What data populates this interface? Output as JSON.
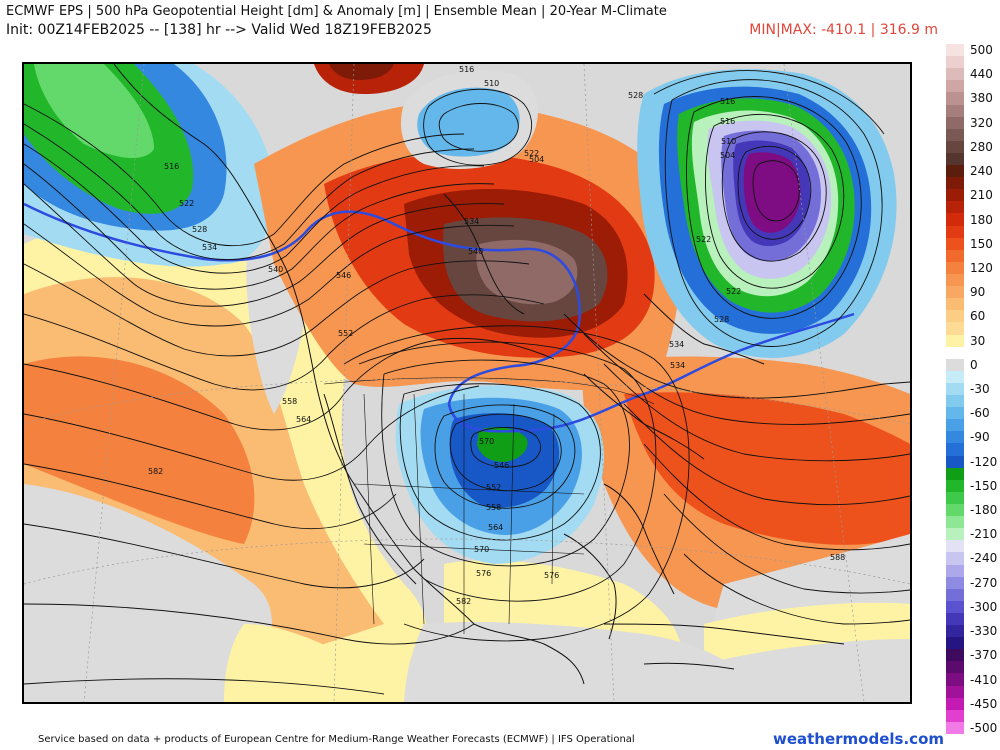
{
  "header": {
    "line1": "ECMWF EPS | 500 hPa Geopotential Height [dm] & Anomaly [m] | Ensemble Mean | 20-Year M-Climate",
    "line2": "Init: 00Z14FEB2025 -- [138] hr --> Valid Wed 18Z19FEB2025",
    "minmax": "MIN|MAX: -410.1 | 316.9 m"
  },
  "footer": {
    "attribution": "Service based on data + products of European Centre for Medium-Range Weather Forecasts (ECMWF) | IFS Operational",
    "brand": "weathermodels.com"
  },
  "legend": {
    "levels": [
      {
        "label": "500",
        "color": "#f7e2e2"
      },
      {
        "label": "",
        "color": "#eccfcf"
      },
      {
        "label": "440",
        "color": "#ddbbba"
      },
      {
        "label": "",
        "color": "#cfa6a4"
      },
      {
        "label": "380",
        "color": "#bb9290"
      },
      {
        "label": "",
        "color": "#a67e7b"
      },
      {
        "label": "320",
        "color": "#8f6a66"
      },
      {
        "label": "",
        "color": "#7a5853"
      },
      {
        "label": "280",
        "color": "#674640"
      },
      {
        "label": "",
        "color": "#54362f"
      },
      {
        "label": "240",
        "color": "#5d1d0c"
      },
      {
        "label": "",
        "color": "#7d1b08"
      },
      {
        "label": "210",
        "color": "#9c1c06"
      },
      {
        "label": "",
        "color": "#b82208"
      },
      {
        "label": "180",
        "color": "#d22a0a"
      },
      {
        "label": "",
        "color": "#e23a12"
      },
      {
        "label": "150",
        "color": "#ee521c"
      },
      {
        "label": "",
        "color": "#f16a2c"
      },
      {
        "label": "120",
        "color": "#f4823e"
      },
      {
        "label": "",
        "color": "#f69650"
      },
      {
        "label": "90",
        "color": "#f8a862"
      },
      {
        "label": "",
        "color": "#fabb72"
      },
      {
        "label": "60",
        "color": "#fccd84"
      },
      {
        "label": "",
        "color": "#fddb94"
      },
      {
        "label": "30",
        "color": "#fef3a4"
      },
      {
        "label": "",
        "color": "#ffffff"
      },
      {
        "label": "0",
        "color": "#dcdcdc"
      },
      {
        "label": "",
        "color": "#c5ecf7"
      },
      {
        "label": "-30",
        "color": "#a3dcf2"
      },
      {
        "label": "",
        "color": "#83cbee"
      },
      {
        "label": "-60",
        "color": "#64b7ea"
      },
      {
        "label": "",
        "color": "#4aa0e6"
      },
      {
        "label": "-90",
        "color": "#3488e0"
      },
      {
        "label": "",
        "color": "#2470d8"
      },
      {
        "label": "-120",
        "color": "#1858c6"
      },
      {
        "label": "",
        "color": "#0f9e16"
      },
      {
        "label": "-150",
        "color": "#22b72a"
      },
      {
        "label": "",
        "color": "#3ec94a"
      },
      {
        "label": "-180",
        "color": "#63d96b"
      },
      {
        "label": "",
        "color": "#8ee794"
      },
      {
        "label": "-210",
        "color": "#b8f1bb"
      },
      {
        "label": "",
        "color": "#e2e1f6"
      },
      {
        "label": "-240",
        "color": "#c8c5f1"
      },
      {
        "label": "",
        "color": "#aca8ea"
      },
      {
        "label": "-270",
        "color": "#908be2"
      },
      {
        "label": "",
        "color": "#746ed9"
      },
      {
        "label": "-300",
        "color": "#5b52cf"
      },
      {
        "label": "",
        "color": "#4438b8"
      },
      {
        "label": "-330",
        "color": "#32259e"
      },
      {
        "label": "",
        "color": "#251583"
      },
      {
        "label": "-370",
        "color": "#3e0a5e"
      },
      {
        "label": "",
        "color": "#5c0a6e"
      },
      {
        "label": "-410",
        "color": "#7e0d84"
      },
      {
        "label": "",
        "color": "#a0129a"
      },
      {
        "label": "-450",
        "color": "#c41ab4"
      },
      {
        "label": "",
        "color": "#e23ed0"
      },
      {
        "label": "-500",
        "color": "#f07ae6"
      }
    ]
  },
  "map": {
    "contour_labels": [
      "516",
      "516",
      "522",
      "528",
      "534",
      "540",
      "546",
      "552",
      "558",
      "564",
      "570",
      "576",
      "582",
      "582",
      "588",
      "510",
      "504",
      "516",
      "522",
      "528",
      "534",
      "540",
      "546",
      "552",
      "558",
      "564",
      "570",
      "576",
      "522",
      "528",
      "534",
      "516",
      "510",
      "504",
      "522",
      "534"
    ]
  }
}
